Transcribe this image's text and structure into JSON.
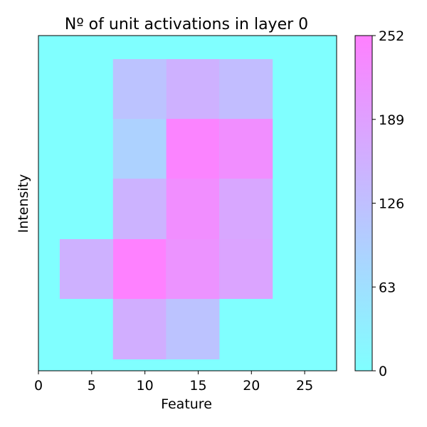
{
  "chart_data": {
    "type": "heatmap",
    "title": "Nº of unit activations in layer 0",
    "xlabel": "Feature",
    "ylabel": "Intensity",
    "xlim": [
      0,
      28
    ],
    "xticks": [
      0,
      5,
      10,
      15,
      20,
      25
    ],
    "y_tick_labels": [],
    "colormap": "cool",
    "colormap_low": "#80ffff",
    "colormap_high": "#ff80ff",
    "background_value": 0,
    "colorbar": {
      "min": 0,
      "max": 252,
      "ticks": [
        0,
        63,
        126,
        189,
        252
      ]
    },
    "cells": [
      {
        "x0": 7,
        "x1": 12,
        "row": 0,
        "value": 120
      },
      {
        "x0": 12,
        "x1": 17,
        "row": 0,
        "value": 155
      },
      {
        "x0": 17,
        "x1": 22,
        "row": 0,
        "value": 130
      },
      {
        "x0": 7,
        "x1": 12,
        "row": 1,
        "value": 90
      },
      {
        "x0": 12,
        "x1": 17,
        "row": 1,
        "value": 245
      },
      {
        "x0": 17,
        "x1": 22,
        "row": 1,
        "value": 225
      },
      {
        "x0": 7,
        "x1": 12,
        "row": 2,
        "value": 150
      },
      {
        "x0": 12,
        "x1": 17,
        "row": 2,
        "value": 225
      },
      {
        "x0": 17,
        "x1": 22,
        "row": 2,
        "value": 175
      },
      {
        "x0": 2,
        "x1": 7,
        "row": 3,
        "value": 155
      },
      {
        "x0": 7,
        "x1": 12,
        "row": 3,
        "value": 250
      },
      {
        "x0": 12,
        "x1": 17,
        "row": 3,
        "value": 215
      },
      {
        "x0": 17,
        "x1": 22,
        "row": 3,
        "value": 180
      },
      {
        "x0": 7,
        "x1": 12,
        "row": 4,
        "value": 160
      },
      {
        "x0": 12,
        "x1": 17,
        "row": 4,
        "value": 120
      }
    ]
  }
}
